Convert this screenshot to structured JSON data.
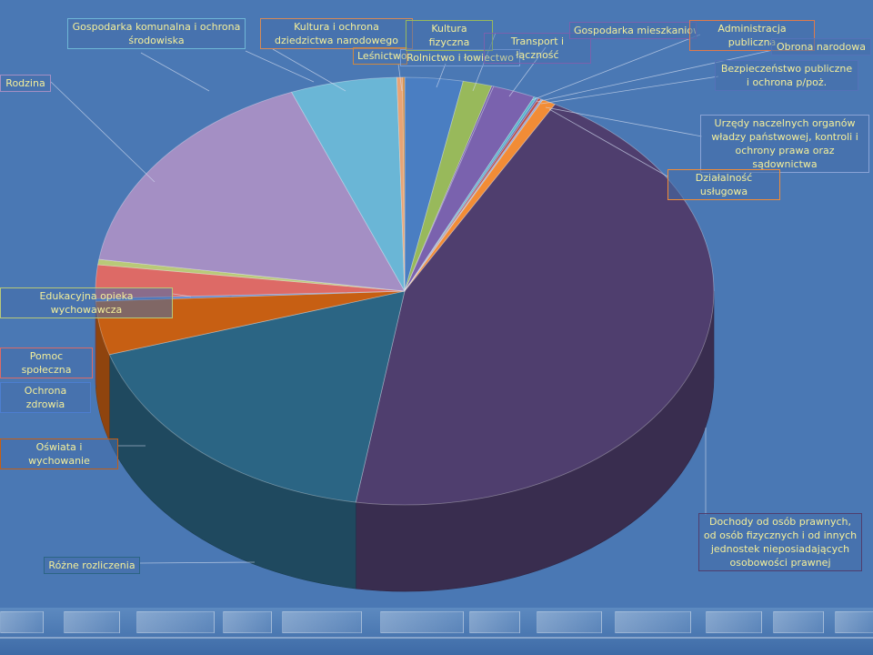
{
  "chart_data": {
    "type": "pie",
    "style": "3d",
    "start_angle_deg": -90,
    "direction": "clockwise",
    "slices": [
      {
        "label": "Rolnictwo i łowiectwo",
        "value": 3.0,
        "color": "#4a7ec2"
      },
      {
        "label": "Kultura fizyczna",
        "value": 1.5,
        "color": "#98b95b"
      },
      {
        "label": "Transport i łączność",
        "value": 0.1,
        "color": "#6e58a8"
      },
      {
        "label": "Gospodarka mieszkaniowa",
        "value": 2.2,
        "color": "#7a62ae"
      },
      {
        "label": "Administracja publiczna",
        "value": 0.15,
        "color": "#58b8cc"
      },
      {
        "label": "Obrona narodowa",
        "value": 0.1,
        "color": "#5472b8"
      },
      {
        "label": "Bezpieczeństwo publiczne i ochrona p/poż.",
        "value": 0.15,
        "color": "#b74f4f"
      },
      {
        "label": "Urzędy naczelnych organów władzy państwowej, kontroli i ochrony prawa oraz sądownictwa",
        "value": 0.1,
        "color": "#8aa3d6"
      },
      {
        "label": "Działalność usługowa",
        "value": 0.7,
        "color": "#f28c36"
      },
      {
        "label": "Dochody od osób prawnych, od osób fizycznych i od innych jednostek nieposiadających osobowości prawnej",
        "value": 44.0,
        "color": "#4f3e6e"
      },
      {
        "label": "Różne rozliczenia",
        "value": 17.5,
        "color": "#2b6584"
      },
      {
        "label": "Oświata i wychowanie",
        "value": 4.0,
        "color": "#c75f13"
      },
      {
        "label": "Ochrona zdrowia",
        "value": 0.2,
        "color": "#4d7ed0"
      },
      {
        "label": "Pomoc społeczna",
        "value": 2.5,
        "color": "#dd6a66"
      },
      {
        "label": "Edukacyjna opieka wychowawcza",
        "value": 0.4,
        "color": "#b9c978"
      },
      {
        "label": "Rodzina",
        "value": 16.5,
        "color": "#a48fc4"
      },
      {
        "label": "Gospodarka komunalna i ochrona środowiska",
        "value": 5.5,
        "color": "#6ab6d6"
      },
      {
        "label": "Kultura i ochrona dziedzictwa narodowego",
        "value": 0.3,
        "color": "#e8a374"
      },
      {
        "label": "Leśnictwo",
        "value": 0.1,
        "color": "#d0893f"
      }
    ]
  },
  "labels": {
    "rolnictwo": "Rolnictwo i łowiectwo",
    "kultura_fizyczna": "Kultura fizyczna",
    "transport": "Transport i łączność",
    "gospodarka_mieszkaniowa": "Gospodarka mieszkaniowa",
    "administracja": "Administracja publiczna",
    "obrona": "Obrona narodowa",
    "bezpieczenstwo": "Bezpieczeństwo  publiczne i ochrona p/poż.",
    "urzedy": "Urzędy  naczelnych organów władzy państwowej, kontroli i ochrony prawa oraz sądownictwa",
    "dzialalnosc": "Działalność usługowa",
    "dochody": "Dochody od osób prawnych, od osób fizycznych i od innych jednostek nieposiadających osobowości prawnej",
    "rozne": "Różne  rozliczenia",
    "oswiata": "Oświata i wychowanie",
    "ochrona_zdrowia": "Ochrona zdrowia",
    "pomoc": "Pomoc społeczna",
    "edukacyjna": "Edukacyjna  opieka wychowawcza",
    "rodzina": "Rodzina",
    "gospodarka_komunalna": "Gospodarka komunalna i ochrona środowiska",
    "kultura_dziedzictwo": "Kultura i ochrona dziedzictwa narodowego",
    "lesnictwo": "Leśnictwo"
  }
}
